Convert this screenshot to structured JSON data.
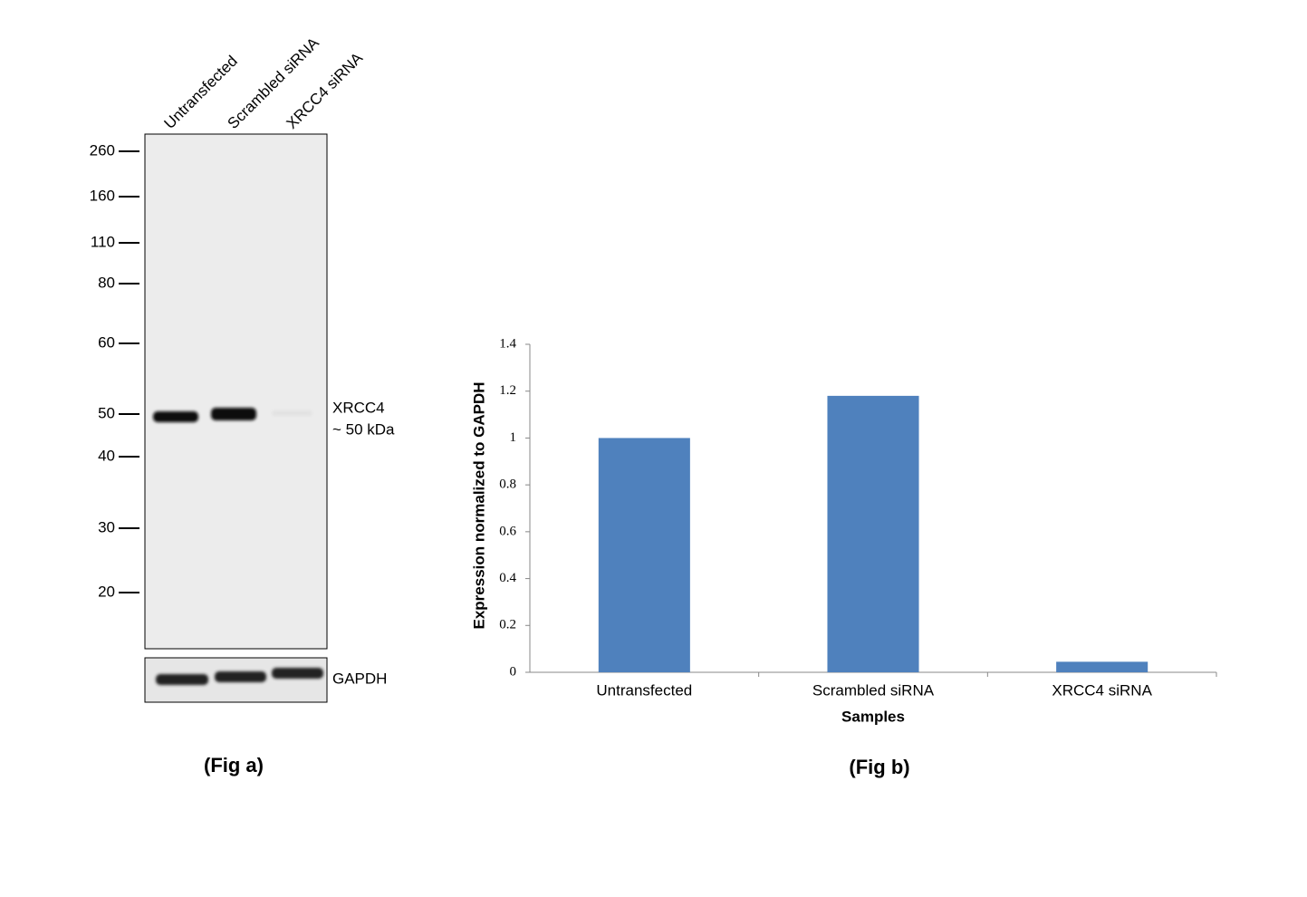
{
  "blot": {
    "lanes": [
      "Untransfected",
      "Scrambled siRNA",
      "XRCC4 siRNA"
    ],
    "markers": [
      260,
      160,
      110,
      80,
      60,
      50,
      40,
      30,
      20
    ],
    "band_label": "XRCC4",
    "band_size": "~ 50 kDa",
    "loading_control": "GAPDH",
    "caption": "(Fig a)"
  },
  "chart_data": {
    "type": "bar",
    "categories": [
      "Untransfected",
      "Scrambled siRNA",
      "XRCC4 siRNA"
    ],
    "values": [
      1,
      1.18,
      0.045
    ],
    "color": "#4f81bd",
    "ylim": [
      0,
      1.4
    ],
    "yticks": [
      0,
      0.2,
      0.4,
      0.6,
      0.8,
      1,
      1.2,
      1.4
    ],
    "y_label": "Expression  normalized to GAPDH",
    "x_label": "Samples",
    "caption": "(Fig b)"
  }
}
